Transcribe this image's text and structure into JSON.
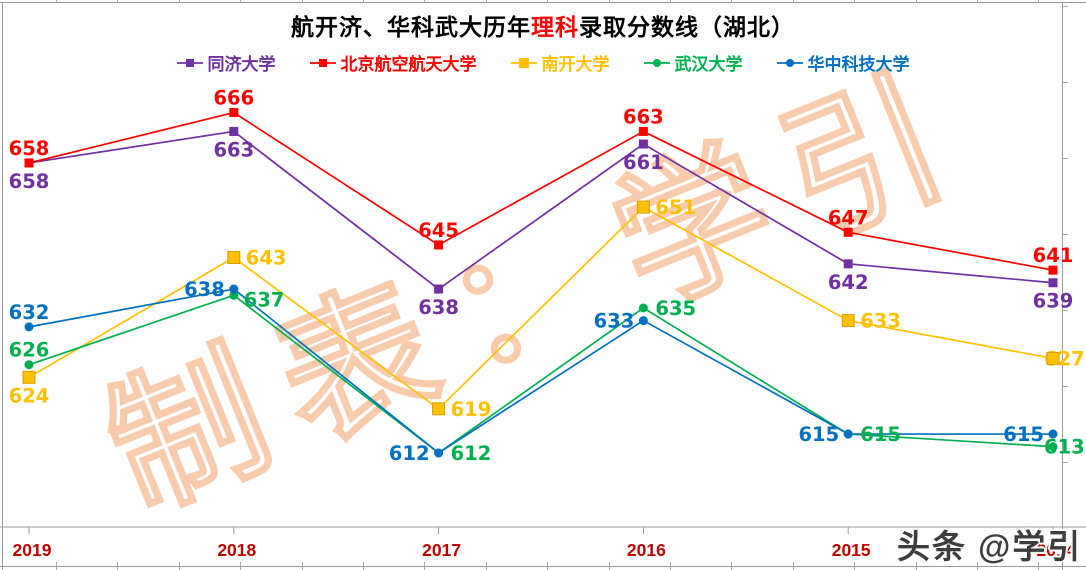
{
  "title": {
    "part1": "航开济、华科武大历年",
    "highlight": "理科",
    "part2": "录取分数线（湖北）"
  },
  "watermark": {
    "diagonal": "制表：学引",
    "badge": "头条 @学引"
  },
  "colors": {
    "title_highlight": "#FF0000",
    "axis_label": "#C00000",
    "axis_line": "#9a9a9a",
    "watermark_stroke": "#F8CBAD",
    "badge_text": "#3d3d3d"
  },
  "chart_data": {
    "type": "line",
    "title": "航开济、华科武大历年理科录取分数线（湖北）",
    "x_categories": [
      "2019",
      "2018",
      "2017",
      "2016",
      "2015",
      "2014"
    ],
    "ylim": [
      600,
      672
    ],
    "grid": false,
    "legend_position": "top",
    "x_axis_label_color": "#C00000",
    "series": [
      {
        "name": "同济大学",
        "color": "#7030A0",
        "marker": "square",
        "values": [
          658,
          663,
          638,
          661,
          642,
          639
        ],
        "label_placement": [
          "below",
          "below",
          "below",
          "below",
          "below",
          "below"
        ]
      },
      {
        "name": "北京航空航天大学",
        "color": "#FE0000",
        "marker": "square",
        "values": [
          658,
          666,
          645,
          663,
          647,
          641
        ],
        "label_placement": [
          "above",
          "above",
          "above",
          "above",
          "above",
          "above"
        ]
      },
      {
        "name": "南开大学",
        "color": "#FFC000",
        "marker": "square-large",
        "values": [
          624,
          643,
          619,
          651,
          633,
          627
        ],
        "label_placement": [
          "below",
          "right",
          "right",
          "right",
          "right",
          "overlap-right"
        ]
      },
      {
        "name": "武汉大学",
        "color": "#00B050",
        "marker": "circle",
        "values": [
          626,
          637,
          612,
          635,
          615,
          613
        ],
        "label_placement": [
          "above",
          "right-low",
          "right",
          "right",
          "right",
          "overlap-right"
        ]
      },
      {
        "name": "华中科技大学",
        "color": "#0070C0",
        "marker": "circle",
        "values": [
          632,
          638,
          612,
          633,
          615,
          615
        ],
        "label_placement": [
          "above",
          "left",
          "left",
          "left",
          "left",
          "left"
        ]
      }
    ]
  }
}
